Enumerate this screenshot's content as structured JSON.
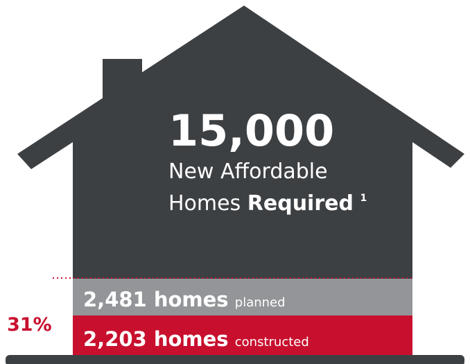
{
  "headline": {
    "number": "15,000",
    "line1": "New Affordable",
    "line2_regular": "Homes",
    "line2_bold": "Required",
    "footnote": "1"
  },
  "percent": "31%",
  "planned": {
    "count": "2,481 homes",
    "label": "planned"
  },
  "constructed": {
    "count": "2,203 homes",
    "label": "constructed"
  }
}
